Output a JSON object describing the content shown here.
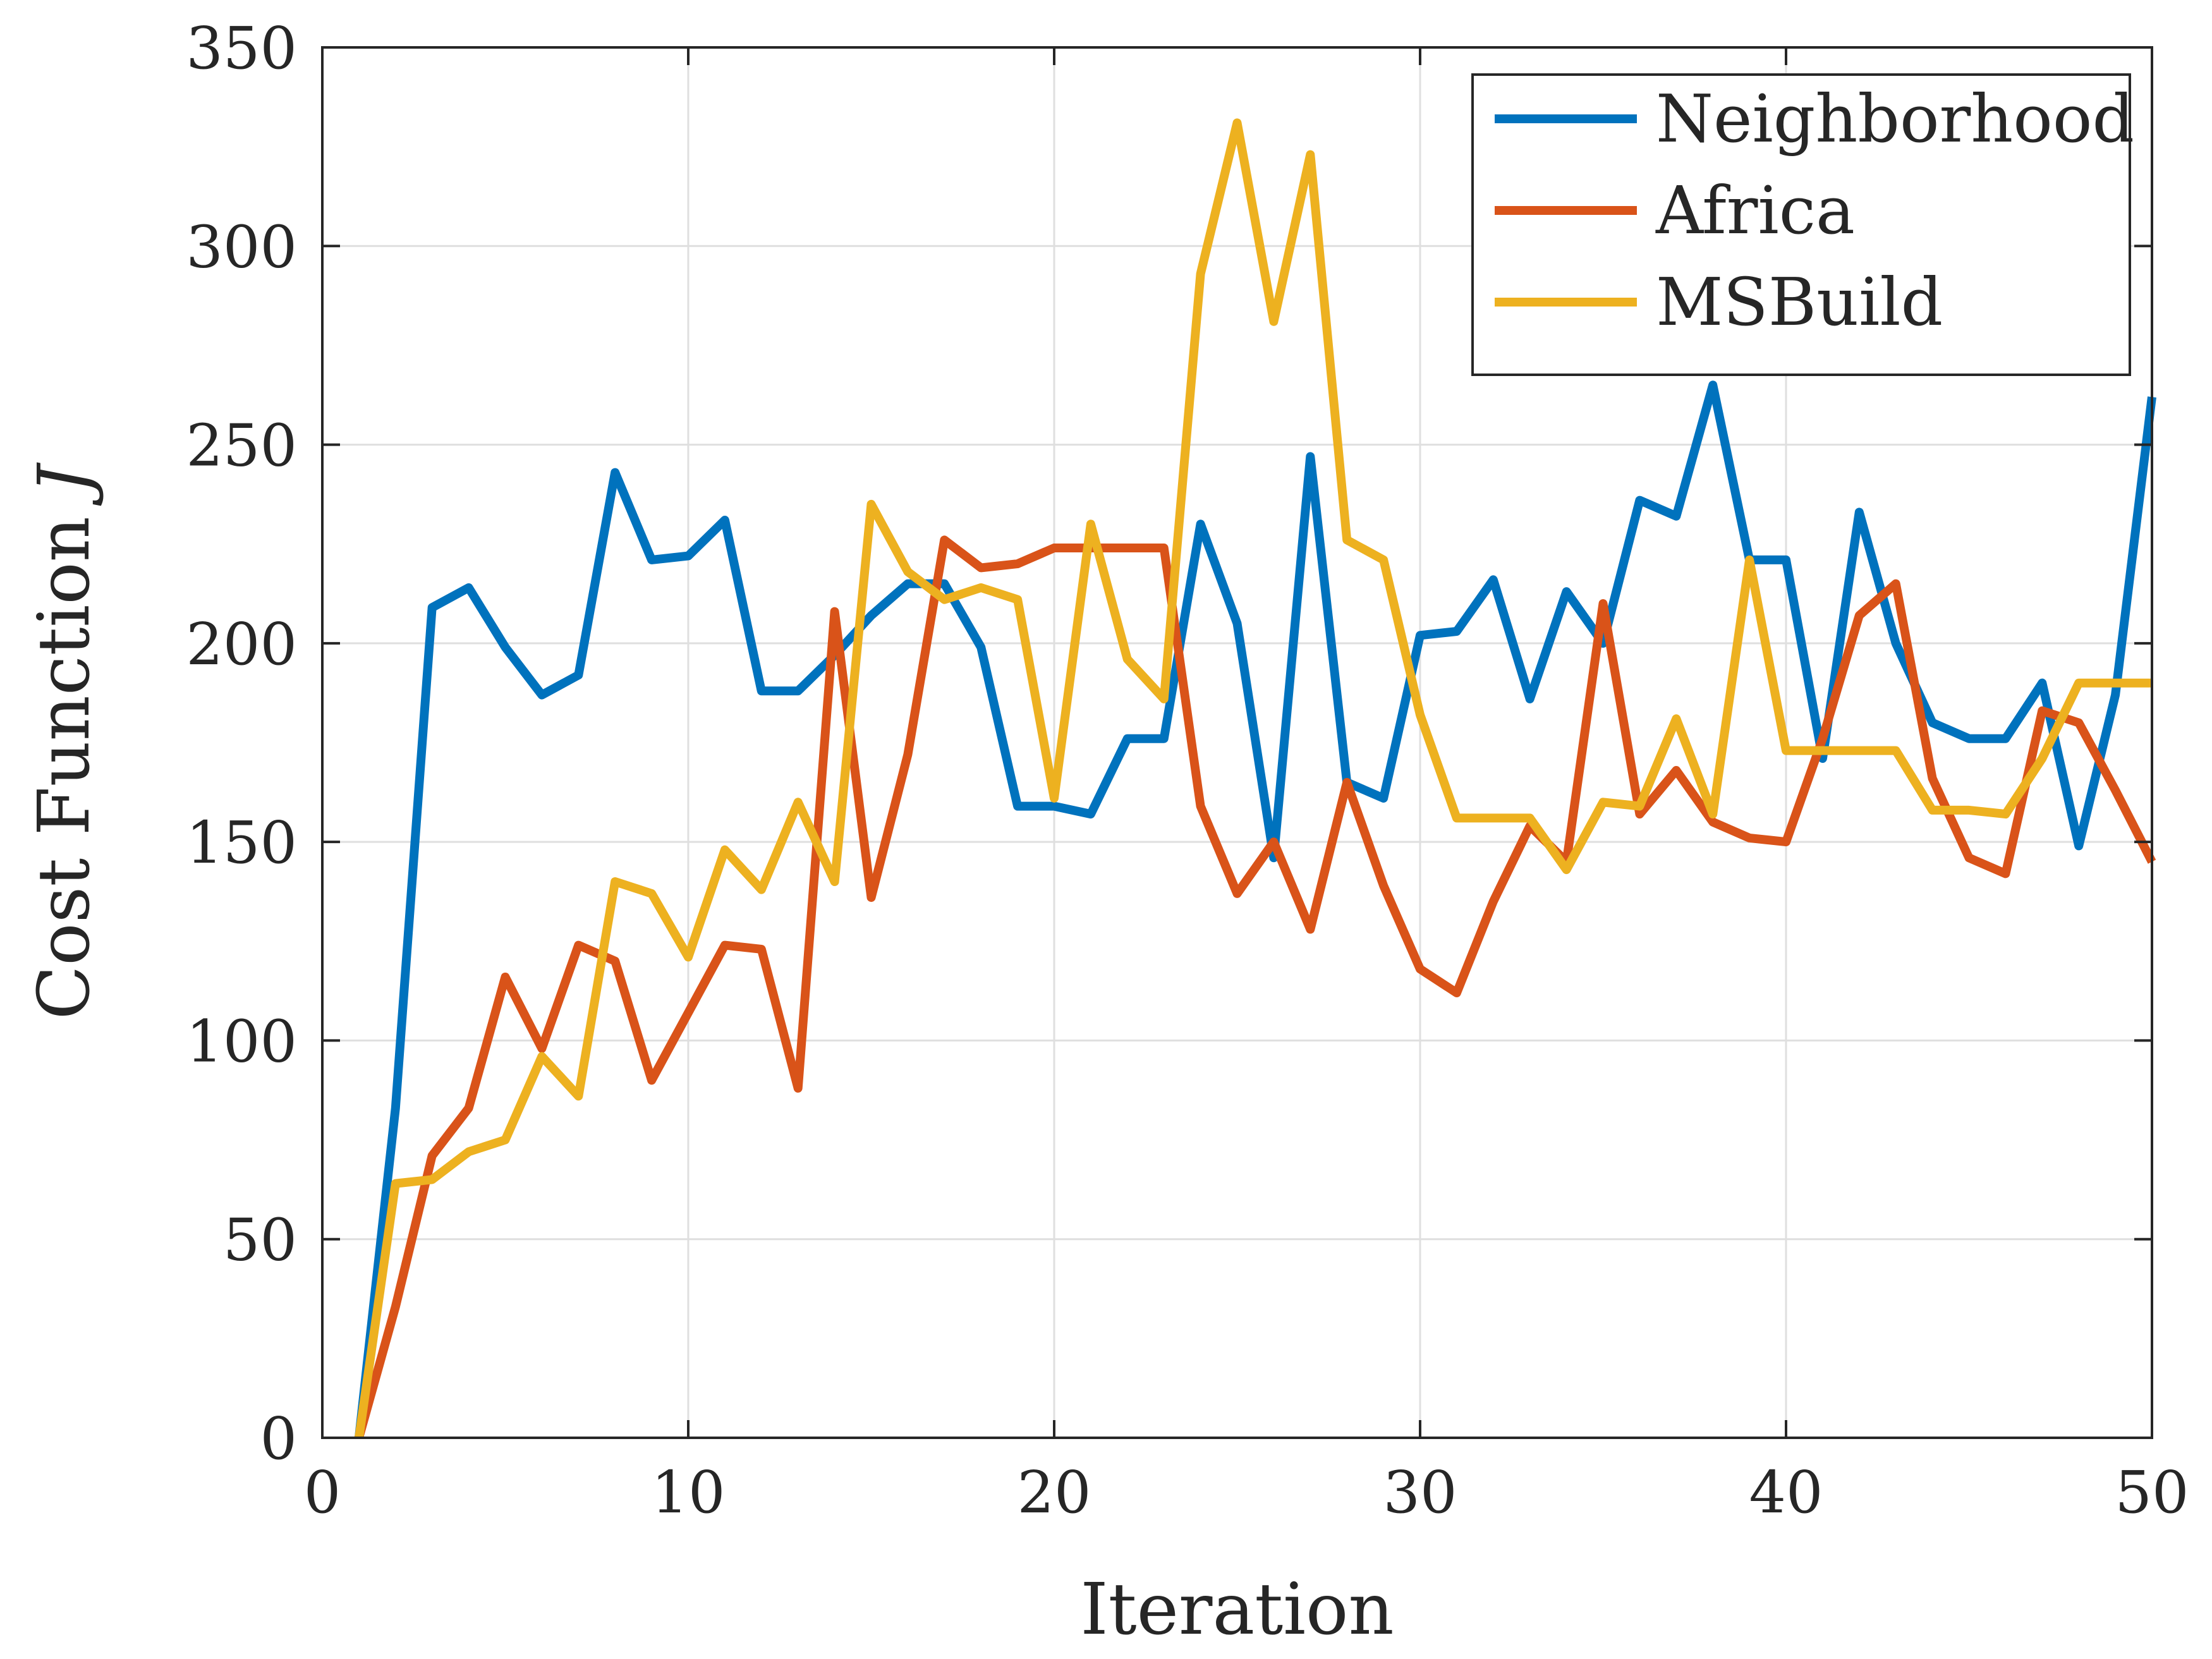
{
  "chart_data": {
    "type": "line",
    "xlabel": "Iteration",
    "ylabel": "Cost Function ",
    "ylabel_symbol": "J",
    "xlim": [
      0,
      50
    ],
    "ylim": [
      0,
      350
    ],
    "xticks": [
      0,
      10,
      20,
      30,
      40,
      50
    ],
    "yticks": [
      0,
      50,
      100,
      150,
      200,
      250,
      300,
      350
    ],
    "grid": true,
    "legend_position": "top-right",
    "x": [
      1,
      2,
      3,
      4,
      5,
      6,
      7,
      8,
      9,
      10,
      11,
      12,
      13,
      14,
      15,
      16,
      17,
      18,
      19,
      20,
      21,
      22,
      23,
      24,
      25,
      26,
      27,
      28,
      29,
      30,
      31,
      32,
      33,
      34,
      35,
      36,
      37,
      38,
      39,
      40,
      41,
      42,
      43,
      44,
      45,
      46,
      47,
      48,
      49,
      50
    ],
    "series": [
      {
        "name": "Neighborhood",
        "color": "#0072BD",
        "values": [
          0,
          83,
          209,
          214,
          199,
          187,
          192,
          243,
          221,
          222,
          231,
          188,
          188,
          197,
          207,
          215,
          215,
          199,
          159,
          159,
          157,
          176,
          176,
          230,
          205,
          146,
          247,
          165,
          161,
          202,
          203,
          216,
          186,
          213,
          200,
          236,
          232,
          265,
          221,
          221,
          171,
          233,
          200,
          180,
          176,
          176,
          190,
          149,
          187,
          262
        ]
      },
      {
        "name": "Africa",
        "color": "#D95319",
        "values": [
          0,
          33,
          71,
          83,
          116,
          98,
          124,
          120,
          90,
          107,
          124,
          123,
          88,
          208,
          136,
          172,
          226,
          219,
          220,
          224,
          224,
          224,
          224,
          159,
          137,
          150,
          128,
          165,
          139,
          118,
          112,
          135,
          154,
          145,
          210,
          157,
          168,
          155,
          151,
          150,
          176,
          207,
          215,
          166,
          146,
          142,
          183,
          180,
          163,
          145
        ]
      },
      {
        "name": "MSBuild",
        "color": "#EDB120",
        "values": [
          0,
          64,
          65,
          72,
          75,
          96,
          86,
          140,
          137,
          121,
          148,
          138,
          160,
          140,
          235,
          218,
          211,
          214,
          211,
          161,
          230,
          196,
          186,
          293,
          331,
          281,
          323,
          226,
          221,
          182,
          156,
          156,
          156,
          143,
          160,
          159,
          181,
          157,
          221,
          173,
          173,
          173,
          173,
          158,
          158,
          157,
          171,
          190,
          190,
          190
        ]
      }
    ]
  }
}
